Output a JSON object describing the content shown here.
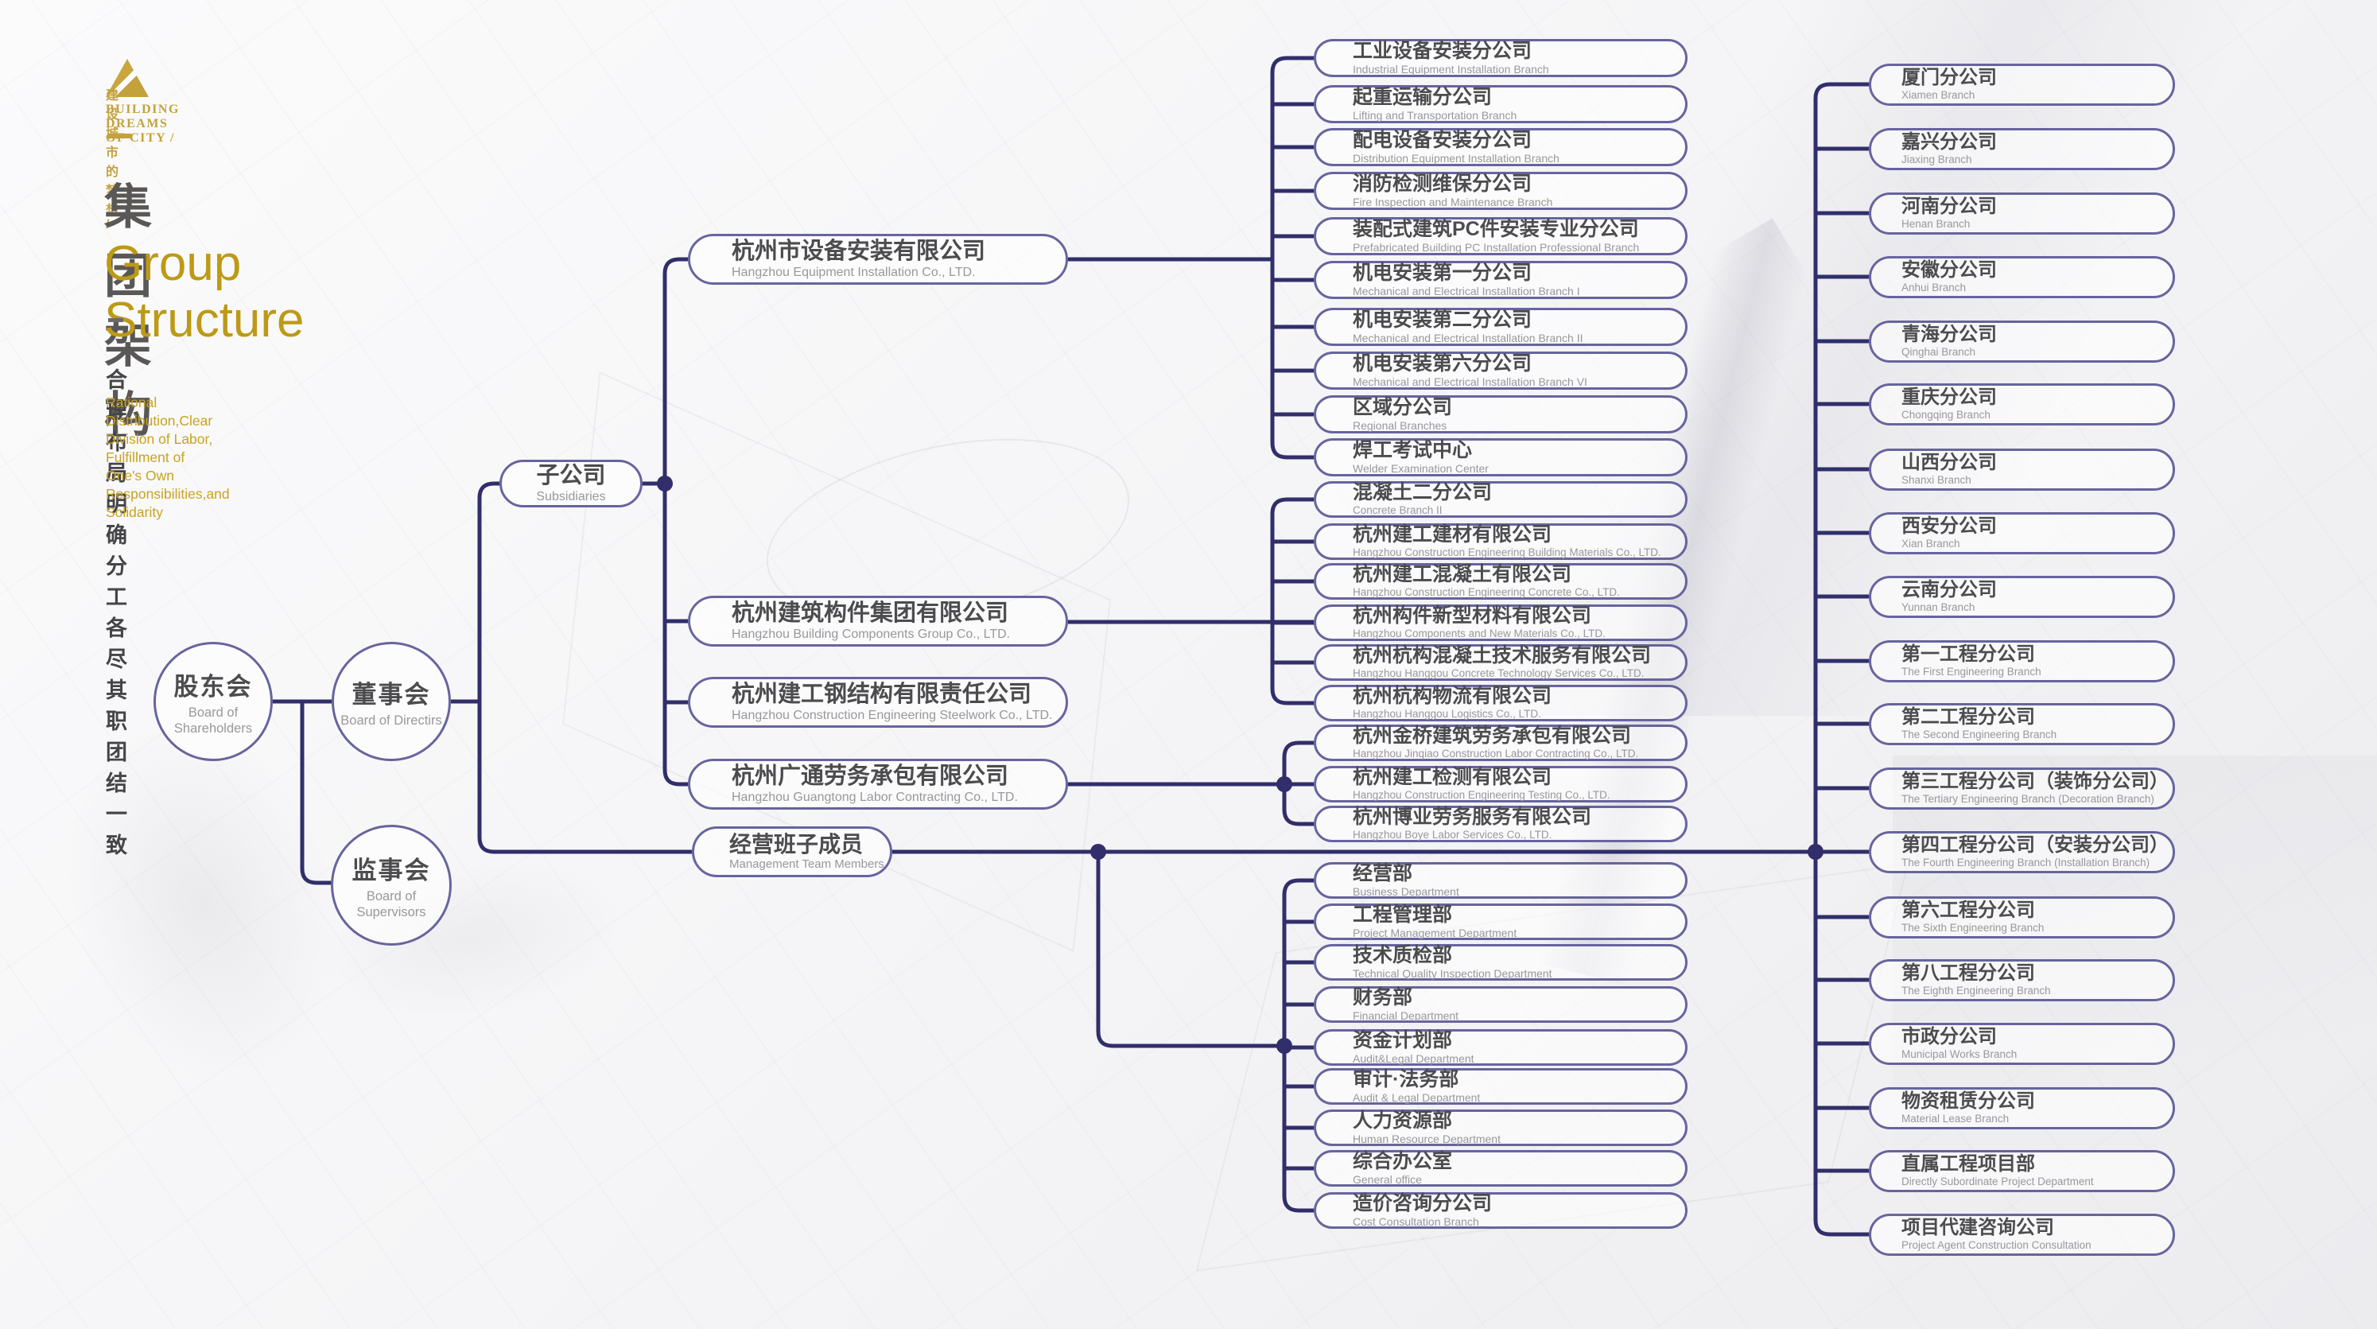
{
  "header": {
    "logo_line1": "建设城市的梦想  /",
    "logo_line2": "BUILDING DREAMS OF CITY /",
    "title_zh": "集团架构",
    "title_en": "Group Structure",
    "slogan_zh": "合理布局 明确分工 各尽其职 团结一致",
    "slogan_en_line1": "Rational Distribution,Clear Division of Labor, Fulfillment of",
    "slogan_en_line2": "One's Own Responsibilities,and Solidarity",
    "accent_gold": "#bd9a16",
    "line_color": "#312e6b",
    "pill_border_color": "#67649e"
  },
  "org": {
    "shareholders": {
      "zh": "股东会",
      "en": "Board of Shareholders"
    },
    "directors": {
      "zh": "董事会",
      "en": "Board of Directirs"
    },
    "supervisors": {
      "zh": "监事会",
      "en": "Board of Supervisors"
    },
    "subsidiaries_hub": {
      "zh": "子公司",
      "en": "Subsidiaries"
    },
    "management": {
      "zh": "经营班子成员",
      "en": "Management Team Members"
    },
    "subsidiaries": [
      {
        "zh": "杭州市设备安装有限公司",
        "en": "Hangzhou Equipment Installation Co., LTD."
      },
      {
        "zh": "杭州建筑构件集团有限公司",
        "en": "Hangzhou Building Components Group Co., LTD."
      },
      {
        "zh": "杭州建工钢结构有限责任公司",
        "en": "Hangzhou Construction Engineering Steelwork Co., LTD."
      },
      {
        "zh": "杭州广通劳务承包有限公司",
        "en": "Hangzhou Guangtong Labor Contracting Co., LTD."
      }
    ],
    "installation_branches": [
      {
        "zh": "工业设备安装分公司",
        "en": "Industrial Equipment Installation Branch"
      },
      {
        "zh": "起重运输分公司",
        "en": "Lifting and Transportation Branch"
      },
      {
        "zh": "配电设备安装分公司",
        "en": "Distribution Equipment Installation Branch"
      },
      {
        "zh": "消防检测维保分公司",
        "en": "Fire Inspection and Maintenance Branch"
      },
      {
        "zh": "装配式建筑PC件安装专业分公司",
        "en": "Prefabricated Building PC Installation Professional Branch"
      },
      {
        "zh": "机电安装第一分公司",
        "en": "Mechanical and Electrical Installation Branch I"
      },
      {
        "zh": "机电安装第二分公司",
        "en": "Mechanical and Electrical Installation Branch II"
      },
      {
        "zh": "机电安装第六分公司",
        "en": "Mechanical and Electrical Installation Branch VI"
      },
      {
        "zh": "区域分公司",
        "en": "Regional Branches"
      },
      {
        "zh": "焊工考试中心",
        "en": "Welder Examination Center"
      }
    ],
    "components_branches": [
      {
        "zh": "混凝土二分公司",
        "en": "Concrete Branch II"
      },
      {
        "zh": "杭州建工建材有限公司",
        "en": "Hangzhou Construction Engineering Building Materials Co., LTD."
      },
      {
        "zh": "杭州建工混凝土有限公司",
        "en": "Hangzhou Construction Engineering Concrete Co., LTD."
      },
      {
        "zh": "杭州构件新型材料有限公司",
        "en": "Hangzhou Components and New Materials Co., LTD."
      },
      {
        "zh": "杭州杭构混凝土技术服务有限公司",
        "en": "Hangzhou Hanggou Concrete Technology Services Co., LTD."
      },
      {
        "zh": "杭州杭构物流有限公司",
        "en": "Hangzhou Hanggou Logistics Co., LTD."
      }
    ],
    "labor_branches": [
      {
        "zh": "杭州金桥建筑劳务承包有限公司",
        "en": "Hangzhou Jinqiao Construction Labor Contracting Co., LTD."
      },
      {
        "zh": "杭州建工检测有限公司",
        "en": "Hangzhou Construction Engineering Testing Co., LTD."
      },
      {
        "zh": "杭州博业劳务服务有限公司",
        "en": "Hangzhou Boye Labor Services Co., LTD."
      }
    ],
    "departments": [
      {
        "zh": "经营部",
        "en": "Business Department"
      },
      {
        "zh": "工程管理部",
        "en": "Project Management Department"
      },
      {
        "zh": "技术质检部",
        "en": "Technical Quality Inspection Department"
      },
      {
        "zh": "财务部",
        "en": "Financial Department"
      },
      {
        "zh": "资金计划部",
        "en": "Audit&Legal Department"
      },
      {
        "zh": "审计·法务部",
        "en": "Audit & Legal Department"
      },
      {
        "zh": "人力资源部",
        "en": "Human Resource Department"
      },
      {
        "zh": "综合办公室",
        "en": "General office"
      },
      {
        "zh": "造价咨询分公司",
        "en": "Cost Consultation Branch"
      }
    ],
    "regional_branches": [
      {
        "zh": "厦门分公司",
        "en": "Xiamen Branch"
      },
      {
        "zh": "嘉兴分公司",
        "en": "Jiaxing Branch"
      },
      {
        "zh": "河南分公司",
        "en": "Henan Branch"
      },
      {
        "zh": "安徽分公司",
        "en": "Anhui Branch"
      },
      {
        "zh": "青海分公司",
        "en": "Qinghai Branch"
      },
      {
        "zh": "重庆分公司",
        "en": "Chongqing Branch"
      },
      {
        "zh": "山西分公司",
        "en": "Shanxi Branch"
      },
      {
        "zh": "西安分公司",
        "en": "Xian Branch"
      },
      {
        "zh": "云南分公司",
        "en": "Yunnan Branch"
      },
      {
        "zh": "第一工程分公司",
        "en": "The First Engineering Branch"
      },
      {
        "zh": "第二工程分公司",
        "en": "The Second Engineering Branch"
      },
      {
        "zh": "第三工程分公司（装饰分公司）",
        "en": "The Tertiary Engineering Branch (Decoration Branch)"
      },
      {
        "zh": "第四工程分公司（安装分公司）",
        "en": "The Fourth Engineering Branch (Installation Branch)"
      },
      {
        "zh": "第六工程分公司",
        "en": "The Sixth Engineering Branch"
      },
      {
        "zh": "第八工程分公司",
        "en": "The Eighth Engineering Branch"
      },
      {
        "zh": "市政分公司",
        "en": "Municipal Works Branch"
      },
      {
        "zh": "物资租赁分公司",
        "en": "Material Lease Branch"
      },
      {
        "zh": "直属工程项目部",
        "en": "Directly Subordinate Project Department"
      },
      {
        "zh": "项目代建咨询公司",
        "en": "Project Agent Construction Consultation"
      }
    ]
  }
}
